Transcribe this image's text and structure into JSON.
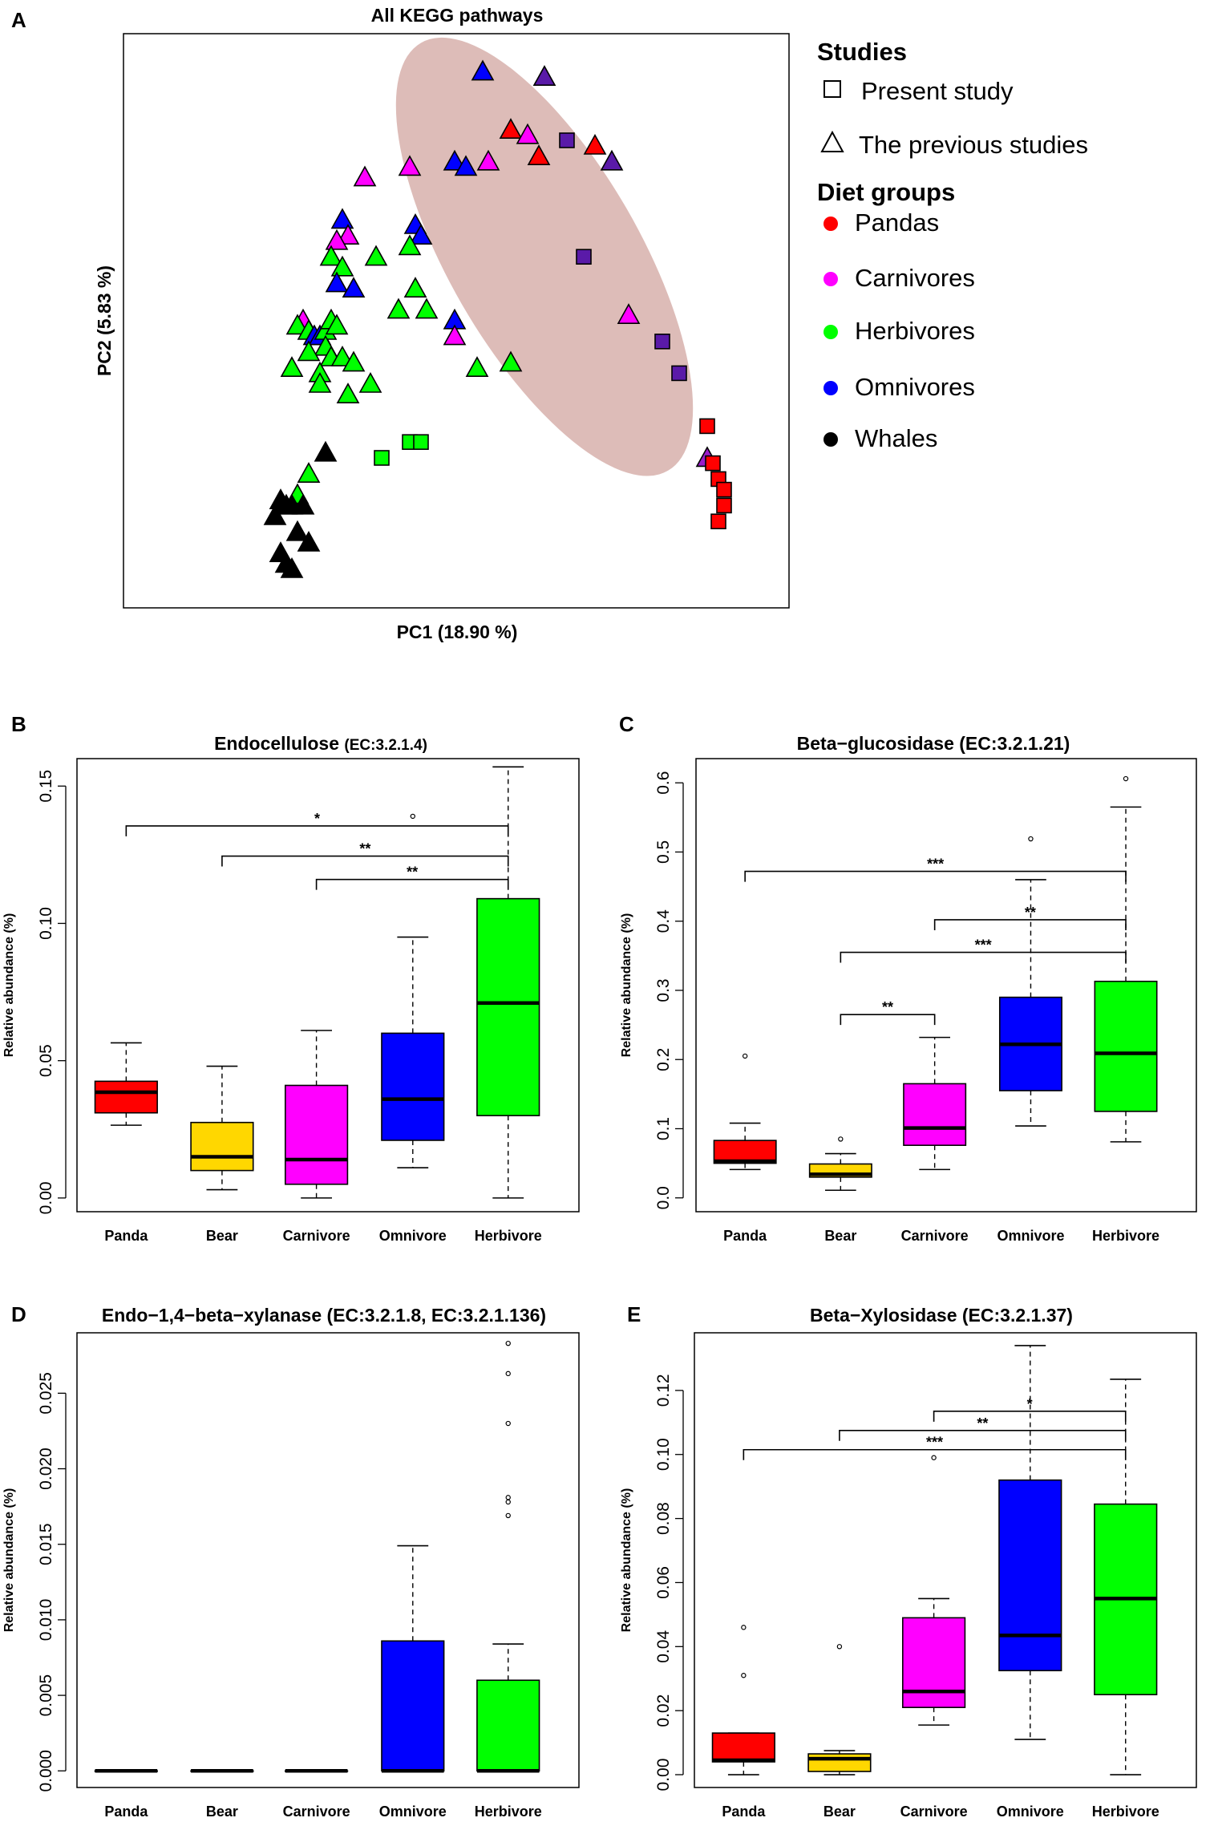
{
  "figure": {
    "panel_labels": [
      "A",
      "B",
      "C",
      "D",
      "E"
    ]
  },
  "pcoa": {
    "title": "All KEGG pathways",
    "xlabel": "PC1 (18.90 %)",
    "ylabel": "PC2 (5.83 %)",
    "legend": {
      "studies_title": "Studies",
      "studies": [
        {
          "label": "Present study",
          "shape": "square"
        },
        {
          "label": "The previous studies",
          "shape": "triangle"
        }
      ],
      "diet_title": "Diet groups",
      "diets": [
        {
          "label": "Pandas",
          "color": "#ff0000"
        },
        {
          "label": "Carnivores",
          "color": "#ff00ff"
        },
        {
          "label": "Herbivores",
          "color": "#00ff00"
        },
        {
          "label": "Omnivores",
          "color": "#0000ff"
        },
        {
          "label": "Whales",
          "color": "#000000"
        }
      ]
    },
    "ellipse_color": "#dbb8b4"
  },
  "chart_data": [
    {
      "type": "scatter",
      "title": "All KEGG pathways",
      "xlabel": "PC1 (18.90 %)",
      "ylabel": "PC2 (5.83 %)",
      "xlim": [
        0,
        100
      ],
      "ylim": [
        0,
        100
      ],
      "axes_ticks": "none",
      "ellipse": {
        "cx": 69,
        "cy": 63,
        "rx": 44,
        "ry": 18,
        "angle_deg": -60
      },
      "points": [
        {
          "x": 63,
          "y": 87,
          "g": "Panda",
          "s": "tri"
        },
        {
          "x": 66,
          "y": 86,
          "g": "Carnivore",
          "s": "tri"
        },
        {
          "x": 68,
          "y": 82,
          "g": "Panda",
          "s": "tri"
        },
        {
          "x": 73,
          "y": 85,
          "g": "Omnivore",
          "s": "sq"
        },
        {
          "x": 78,
          "y": 84,
          "g": "Panda",
          "s": "tri"
        },
        {
          "x": 81,
          "y": 81,
          "g": "Omnivore",
          "s": "tri"
        },
        {
          "x": 69,
          "y": 97,
          "g": "Omnivore",
          "s": "tri"
        },
        {
          "x": 58,
          "y": 98,
          "g": "Omnivore",
          "s": "tri"
        },
        {
          "x": 76,
          "y": 63,
          "g": "Omnivore",
          "s": "sq"
        },
        {
          "x": 84,
          "y": 52,
          "g": "Carnivore",
          "s": "tri"
        },
        {
          "x": 90,
          "y": 47,
          "g": "Omnivore",
          "s": "sq"
        },
        {
          "x": 93,
          "y": 41,
          "g": "Omnivore",
          "s": "sq"
        },
        {
          "x": 98,
          "y": 31,
          "g": "Panda",
          "s": "sq"
        },
        {
          "x": 98,
          "y": 25,
          "g": "Carnivore",
          "s": "tri"
        },
        {
          "x": 99,
          "y": 24,
          "g": "Panda",
          "s": "sq"
        },
        {
          "x": 100,
          "y": 21,
          "g": "Panda",
          "s": "sq"
        },
        {
          "x": 101,
          "y": 19,
          "g": "Panda",
          "s": "sq"
        },
        {
          "x": 101,
          "y": 16,
          "g": "Panda",
          "s": "sq"
        },
        {
          "x": 100,
          "y": 13,
          "g": "Panda",
          "s": "sq"
        },
        {
          "x": 53,
          "y": 81,
          "g": "Omnivore",
          "s": "tri"
        },
        {
          "x": 55,
          "y": 80,
          "g": "Omnivore",
          "s": "tri"
        },
        {
          "x": 59,
          "y": 81,
          "g": "Carnivore",
          "s": "tri"
        },
        {
          "x": 45,
          "y": 80,
          "g": "Carnivore",
          "s": "tri"
        },
        {
          "x": 37,
          "y": 78,
          "g": "Carnivore",
          "s": "tri"
        },
        {
          "x": 26,
          "y": 51,
          "g": "Carnivore",
          "s": "tri"
        },
        {
          "x": 33,
          "y": 70,
          "g": "Omnivore",
          "s": "tri"
        },
        {
          "x": 34,
          "y": 67,
          "g": "Carnivore",
          "s": "tri"
        },
        {
          "x": 32,
          "y": 66,
          "g": "Carnivore",
          "s": "tri"
        },
        {
          "x": 31,
          "y": 63,
          "g": "Herbivore",
          "s": "tri"
        },
        {
          "x": 33,
          "y": 61,
          "g": "Herbivore",
          "s": "tri"
        },
        {
          "x": 32,
          "y": 58,
          "g": "Omnivore",
          "s": "tri"
        },
        {
          "x": 35,
          "y": 57,
          "g": "Omnivore",
          "s": "tri"
        },
        {
          "x": 39,
          "y": 63,
          "g": "Herbivore",
          "s": "tri"
        },
        {
          "x": 46,
          "y": 69,
          "g": "Omnivore",
          "s": "tri"
        },
        {
          "x": 47,
          "y": 67,
          "g": "Omnivore",
          "s": "tri"
        },
        {
          "x": 45,
          "y": 65,
          "g": "Herbivore",
          "s": "tri"
        },
        {
          "x": 46,
          "y": 57,
          "g": "Herbivore",
          "s": "tri"
        },
        {
          "x": 43,
          "y": 53,
          "g": "Herbivore",
          "s": "tri"
        },
        {
          "x": 48,
          "y": 53,
          "g": "Herbivore",
          "s": "tri"
        },
        {
          "x": 53,
          "y": 51,
          "g": "Omnivore",
          "s": "tri"
        },
        {
          "x": 53,
          "y": 48,
          "g": "Carnivore",
          "s": "tri"
        },
        {
          "x": 57,
          "y": 42,
          "g": "Herbivore",
          "s": "tri"
        },
        {
          "x": 63,
          "y": 43,
          "g": "Herbivore",
          "s": "tri"
        },
        {
          "x": 25,
          "y": 50,
          "g": "Herbivore",
          "s": "tri"
        },
        {
          "x": 27,
          "y": 49,
          "g": "Herbivore",
          "s": "tri"
        },
        {
          "x": 28,
          "y": 48,
          "g": "Omnivore",
          "s": "tri"
        },
        {
          "x": 29,
          "y": 48,
          "g": "Omnivore",
          "s": "tri"
        },
        {
          "x": 30,
          "y": 49,
          "g": "Herbivore",
          "s": "tri"
        },
        {
          "x": 31,
          "y": 51,
          "g": "Herbivore",
          "s": "tri"
        },
        {
          "x": 32,
          "y": 50,
          "g": "Herbivore",
          "s": "tri"
        },
        {
          "x": 30,
          "y": 46,
          "g": "Herbivore",
          "s": "tri"
        },
        {
          "x": 27,
          "y": 45,
          "g": "Herbivore",
          "s": "tri"
        },
        {
          "x": 31,
          "y": 44,
          "g": "Herbivore",
          "s": "tri"
        },
        {
          "x": 33,
          "y": 44,
          "g": "Herbivore",
          "s": "tri"
        },
        {
          "x": 35,
          "y": 43,
          "g": "Herbivore",
          "s": "tri"
        },
        {
          "x": 24,
          "y": 42,
          "g": "Herbivore",
          "s": "tri"
        },
        {
          "x": 29,
          "y": 41,
          "g": "Herbivore",
          "s": "tri"
        },
        {
          "x": 29,
          "y": 39,
          "g": "Herbivore",
          "s": "tri"
        },
        {
          "x": 34,
          "y": 37,
          "g": "Herbivore",
          "s": "tri"
        },
        {
          "x": 38,
          "y": 39,
          "g": "Herbivore",
          "s": "tri"
        },
        {
          "x": 40,
          "y": 25,
          "g": "Herbivore",
          "s": "sq"
        },
        {
          "x": 45,
          "y": 28,
          "g": "Herbivore",
          "s": "sq"
        },
        {
          "x": 47,
          "y": 28,
          "g": "Herbivore",
          "s": "sq"
        },
        {
          "x": 30,
          "y": 26,
          "g": "Whale",
          "s": "tri"
        },
        {
          "x": 27,
          "y": 22,
          "g": "Herbivore",
          "s": "tri"
        },
        {
          "x": 25,
          "y": 18,
          "g": "Herbivore",
          "s": "tri"
        },
        {
          "x": 22,
          "y": 17,
          "g": "Whale",
          "s": "tri"
        },
        {
          "x": 23,
          "y": 16,
          "g": "Whale",
          "s": "tri"
        },
        {
          "x": 24,
          "y": 16,
          "g": "Whale",
          "s": "tri"
        },
        {
          "x": 26,
          "y": 16,
          "g": "Whale",
          "s": "tri"
        },
        {
          "x": 21,
          "y": 14,
          "g": "Whale",
          "s": "tri"
        },
        {
          "x": 25,
          "y": 11,
          "g": "Whale",
          "s": "tri"
        },
        {
          "x": 27,
          "y": 9,
          "g": "Whale",
          "s": "tri"
        },
        {
          "x": 22,
          "y": 7,
          "g": "Whale",
          "s": "tri"
        },
        {
          "x": 23,
          "y": 5,
          "g": "Whale",
          "s": "tri"
        },
        {
          "x": 24,
          "y": 4,
          "g": "Whale",
          "s": "tri"
        }
      ]
    },
    {
      "type": "box",
      "panel": "B",
      "title": "Endocellulose",
      "title_suffix": "(EC:3.2.1.4)",
      "ylabel": "Relative abundance (%)",
      "ylim": [
        -0.005,
        0.16
      ],
      "yticks": [
        "0.00",
        "0.05",
        "0.10",
        "0.15"
      ],
      "categories": [
        "Panda",
        "Bear",
        "Carnivore",
        "Omnivore",
        "Herbivore"
      ],
      "colors": [
        "#ff0000",
        "#ffd700",
        "#ff00ff",
        "#0000ff",
        "#00ff00"
      ],
      "boxes": [
        {
          "lo": 0.0265,
          "q1": 0.031,
          "med": 0.0385,
          "q3": 0.0425,
          "hi": 0.0565,
          "out": []
        },
        {
          "lo": 0.003,
          "q1": 0.01,
          "med": 0.015,
          "q3": 0.0275,
          "hi": 0.048,
          "out": []
        },
        {
          "lo": 0.0,
          "q1": 0.005,
          "med": 0.014,
          "q3": 0.041,
          "hi": 0.061,
          "out": []
        },
        {
          "lo": 0.011,
          "q1": 0.021,
          "med": 0.036,
          "q3": 0.06,
          "hi": 0.095,
          "out": [
            0.139
          ]
        },
        {
          "lo": 0.0,
          "q1": 0.03,
          "med": 0.071,
          "q3": 0.109,
          "hi": 0.157,
          "out": []
        }
      ],
      "brackets": [
        {
          "from": 0,
          "to": 4,
          "y": 0.1355,
          "label": "*"
        },
        {
          "from": 1,
          "to": 4,
          "y": 0.1245,
          "label": "**"
        },
        {
          "from": 2,
          "to": 4,
          "y": 0.116,
          "label": "**"
        }
      ]
    },
    {
      "type": "box",
      "panel": "C",
      "title": "Beta−glucosidase (EC:3.2.1.21)",
      "title_suffix": "",
      "ylabel": "Relative abundance (%)",
      "ylim": [
        -0.02,
        0.635
      ],
      "yticks": [
        "0.0",
        "0.1",
        "0.2",
        "0.3",
        "0.4",
        "0.5",
        "0.6"
      ],
      "categories": [
        "Panda",
        "Bear",
        "Carnivore",
        "Omnivore",
        "Herbivore"
      ],
      "colors": [
        "#ff0000",
        "#ffd700",
        "#ff00ff",
        "#0000ff",
        "#00ff00"
      ],
      "boxes": [
        {
          "lo": 0.041,
          "q1": 0.05,
          "med": 0.053,
          "q3": 0.083,
          "hi": 0.108,
          "out": [
            0.205
          ]
        },
        {
          "lo": 0.011,
          "q1": 0.03,
          "med": 0.034,
          "q3": 0.049,
          "hi": 0.064,
          "out": [
            0.085
          ]
        },
        {
          "lo": 0.041,
          "q1": 0.076,
          "med": 0.101,
          "q3": 0.165,
          "hi": 0.232,
          "out": []
        },
        {
          "lo": 0.104,
          "q1": 0.155,
          "med": 0.222,
          "q3": 0.29,
          "hi": 0.46,
          "out": [
            0.519
          ]
        },
        {
          "lo": 0.081,
          "q1": 0.125,
          "med": 0.209,
          "q3": 0.313,
          "hi": 0.565,
          "out": [
            0.606
          ]
        }
      ],
      "brackets": [
        {
          "from": 0,
          "to": 4,
          "y": 0.472,
          "label": "***"
        },
        {
          "from": 2,
          "to": 4,
          "y": 0.402,
          "label": "**"
        },
        {
          "from": 1,
          "to": 4,
          "y": 0.355,
          "label": "***"
        },
        {
          "from": 1,
          "to": 2,
          "y": 0.265,
          "label": "**"
        }
      ]
    },
    {
      "type": "box",
      "panel": "D",
      "title": "Endo−1,4−beta−xylanase (EC:3.2.1.8, EC:3.2.1.136)",
      "title_suffix": "",
      "ylabel": "Relative abundance (%)",
      "ylim": [
        -0.0011,
        0.029
      ],
      "yticks": [
        "0.000",
        "0.005",
        "0.010",
        "0.015",
        "0.020",
        "0.025"
      ],
      "categories": [
        "Panda",
        "Bear",
        "Carnivore",
        "Omnivore",
        "Herbivore"
      ],
      "colors": [
        "#ff0000",
        "#ffd700",
        "#ff00ff",
        "#0000ff",
        "#00ff00"
      ],
      "boxes": [
        {
          "lo": 0,
          "q1": 0,
          "med": 0,
          "q3": 0,
          "hi": 0,
          "out": []
        },
        {
          "lo": 0,
          "q1": 0,
          "med": 0,
          "q3": 0,
          "hi": 0,
          "out": []
        },
        {
          "lo": 0,
          "q1": 0,
          "med": 0,
          "q3": 0,
          "hi": 0,
          "out": []
        },
        {
          "lo": 0,
          "q1": 0,
          "med": 0,
          "q3": 0.0086,
          "hi": 0.0149,
          "out": []
        },
        {
          "lo": 0,
          "q1": 0,
          "med": 0,
          "q3": 0.006,
          "hi": 0.0084,
          "out": [
            0.0169,
            0.0178,
            0.0181,
            0.023,
            0.0263,
            0.0283
          ]
        }
      ],
      "brackets": []
    },
    {
      "type": "box",
      "panel": "E",
      "title": "Beta−Xylosidase (EC:3.2.1.37)",
      "title_suffix": "",
      "ylabel": "Relative abundance (%)",
      "ylim": [
        -0.004,
        0.138
      ],
      "yticks": [
        "0.00",
        "0.02",
        "0.04",
        "0.06",
        "0.08",
        "0.10",
        "0.12"
      ],
      "categories": [
        "Panda",
        "Bear",
        "Carnivore",
        "Omnivore",
        "Herbivore"
      ],
      "colors": [
        "#ff0000",
        "#ffd700",
        "#ff00ff",
        "#0000ff",
        "#00ff00"
      ],
      "boxes": [
        {
          "lo": 0.0,
          "q1": 0.004,
          "med": 0.0045,
          "q3": 0.013,
          "hi": 0.013,
          "out": [
            0.031,
            0.046
          ]
        },
        {
          "lo": 0.0,
          "q1": 0.001,
          "med": 0.005,
          "q3": 0.0065,
          "hi": 0.0075,
          "out": [
            0.04
          ]
        },
        {
          "lo": 0.0155,
          "q1": 0.021,
          "med": 0.026,
          "q3": 0.049,
          "hi": 0.055,
          "out": [
            0.099
          ]
        },
        {
          "lo": 0.011,
          "q1": 0.0325,
          "med": 0.0435,
          "q3": 0.092,
          "hi": 0.134,
          "out": []
        },
        {
          "lo": 0.0,
          "q1": 0.025,
          "med": 0.055,
          "q3": 0.0845,
          "hi": 0.1235,
          "out": []
        }
      ],
      "brackets": [
        {
          "from": 2,
          "to": 4,
          "y": 0.1135,
          "label": "*"
        },
        {
          "from": 1,
          "to": 4,
          "y": 0.1075,
          "label": "**"
        },
        {
          "from": 0,
          "to": 4,
          "y": 0.1015,
          "label": "***"
        }
      ]
    }
  ]
}
